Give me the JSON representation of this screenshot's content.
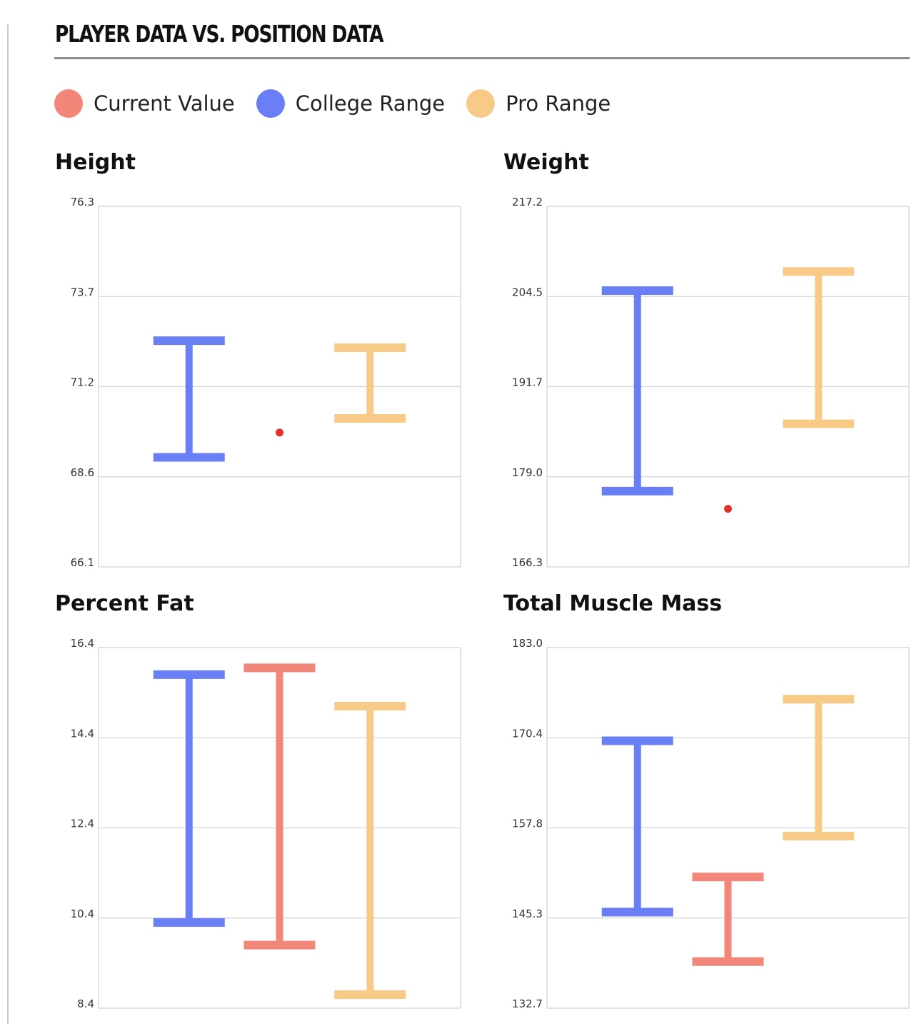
{
  "title": "PLAYER DATA VS. POSITION DATA",
  "legend": [
    {
      "label": "Current Value",
      "color": "#F28679"
    },
    {
      "label": "College Range",
      "color": "#6A7FF5"
    },
    {
      "label": "Pro Range",
      "color": "#F7CB87"
    }
  ],
  "chart_data": [
    {
      "type": "range-bar",
      "title": "Height",
      "yticks": [
        "66.1",
        "68.6",
        "71.2",
        "73.7",
        "76.3"
      ],
      "ylim": [
        66.1,
        76.3
      ],
      "grid": true,
      "series": [
        {
          "name": "College Range",
          "low": 69.2,
          "high": 72.5
        },
        {
          "name": "Current Value",
          "value": 69.9
        },
        {
          "name": "Pro Range",
          "low": 70.3,
          "high": 72.3
        }
      ]
    },
    {
      "type": "range-bar",
      "title": "Weight",
      "yticks": [
        "166.3",
        "179.0",
        "191.7",
        "204.5",
        "217.2"
      ],
      "ylim": [
        166.3,
        217.2
      ],
      "grid": true,
      "series": [
        {
          "name": "College Range",
          "low": 177.0,
          "high": 205.3
        },
        {
          "name": "Current Value",
          "value": 174.5
        },
        {
          "name": "Pro Range",
          "low": 186.5,
          "high": 208.0
        }
      ]
    },
    {
      "type": "range-bar",
      "title": "Percent Fat",
      "yticks": [
        "8.4",
        "10.4",
        "12.4",
        "14.4",
        "16.4"
      ],
      "ylim": [
        8.4,
        16.4
      ],
      "grid": true,
      "series": [
        {
          "name": "College Range",
          "low": 10.3,
          "high": 15.8
        },
        {
          "name": "Current Value",
          "low": 9.8,
          "high": 15.95
        },
        {
          "name": "Pro Range",
          "low": 8.7,
          "high": 15.1
        }
      ]
    },
    {
      "type": "range-bar",
      "title": "Total Muscle Mass",
      "yticks": [
        "132.7",
        "145.3",
        "157.8",
        "170.4",
        "183.0"
      ],
      "ylim": [
        132.7,
        183.0
      ],
      "grid": true,
      "series": [
        {
          "name": "College Range",
          "low": 146.1,
          "high": 170.0
        },
        {
          "name": "Current Value",
          "low": 139.2,
          "high": 151.0
        },
        {
          "name": "Pro Range",
          "low": 156.7,
          "high": 175.8
        }
      ]
    }
  ]
}
